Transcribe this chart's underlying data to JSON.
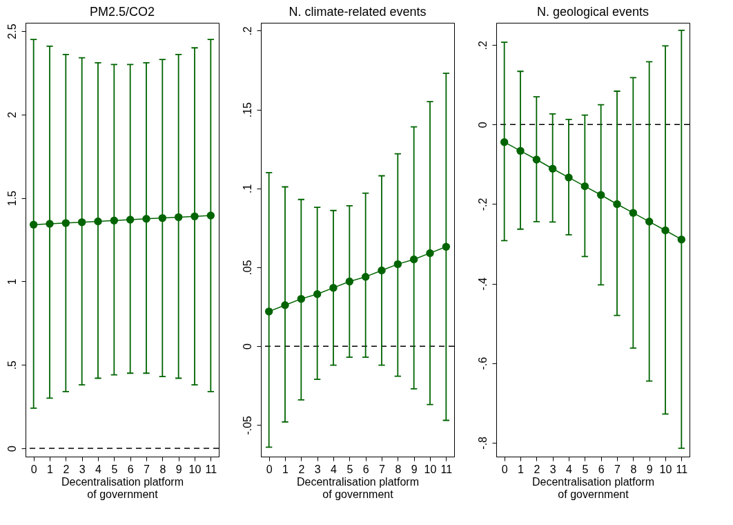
{
  "chart_data": [
    {
      "type": "line",
      "title": "PM2.5/CO2",
      "xlabel": "Decentralisation platform\nof government",
      "xlim": [
        -0.5,
        11.5
      ],
      "xticks": [
        0,
        1,
        2,
        3,
        4,
        5,
        6,
        7,
        8,
        9,
        10,
        11
      ],
      "ylim": [
        -0.05,
        2.55
      ],
      "yticks": [
        0,
        {
          "value": 0.5,
          "label": ".5"
        },
        1,
        1.5,
        2,
        2.5
      ],
      "marker": "circle",
      "line_style": "solid",
      "grid": false,
      "ref_lines": [
        {
          "axis": "y",
          "value": 0,
          "line_style": "dashed",
          "color": "#000000"
        }
      ],
      "series": [
        {
          "color": "#006400",
          "x": [
            0,
            1,
            2,
            3,
            4,
            5,
            6,
            7,
            8,
            9,
            10,
            11
          ],
          "values": [
            1.34,
            1.345,
            1.35,
            1.355,
            1.36,
            1.365,
            1.37,
            1.375,
            1.38,
            1.385,
            1.39,
            1.395
          ],
          "errors": [
            [
              0.24,
              2.45
            ],
            [
              0.3,
              2.41
            ],
            [
              0.34,
              2.36
            ],
            [
              0.38,
              2.34
            ],
            [
              0.42,
              2.31
            ],
            [
              0.44,
              2.3
            ],
            [
              0.45,
              2.3
            ],
            [
              0.45,
              2.31
            ],
            [
              0.43,
              2.33
            ],
            [
              0.42,
              2.36
            ],
            [
              0.38,
              2.4
            ],
            [
              0.34,
              2.45
            ]
          ]
        }
      ]
    },
    {
      "type": "line",
      "title": "N. climate-related events",
      "xlabel": "Decentralisation platform\nof government",
      "xlim": [
        -0.5,
        11.5
      ],
      "xticks": [
        0,
        1,
        2,
        3,
        4,
        5,
        6,
        7,
        8,
        9,
        10,
        11
      ],
      "ylim": [
        -0.07,
        0.205
      ],
      "yticks": [
        {
          "value": -0.05,
          "label": "-.05"
        },
        0,
        {
          "value": 0.05,
          "label": ".05"
        },
        {
          "value": 0.1,
          "label": ".1"
        },
        {
          "value": 0.15,
          "label": ".15"
        },
        {
          "value": 0.2,
          "label": ".2"
        }
      ],
      "marker": "circle",
      "line_style": "solid",
      "grid": false,
      "ref_lines": [
        {
          "axis": "y",
          "value": 0,
          "line_style": "dashed",
          "color": "#000000"
        }
      ],
      "series": [
        {
          "color": "#006400",
          "x": [
            0,
            1,
            2,
            3,
            4,
            5,
            6,
            7,
            8,
            9,
            10,
            11
          ],
          "values": [
            0.022,
            0.026,
            0.03,
            0.033,
            0.037,
            0.041,
            0.044,
            0.048,
            0.052,
            0.055,
            0.059,
            0.063
          ],
          "errors": [
            [
              -0.064,
              0.11
            ],
            [
              -0.048,
              0.101
            ],
            [
              -0.034,
              0.093
            ],
            [
              -0.021,
              0.088
            ],
            [
              -0.012,
              0.086
            ],
            [
              -0.007,
              0.089
            ],
            [
              -0.007,
              0.097
            ],
            [
              -0.012,
              0.108
            ],
            [
              -0.019,
              0.122
            ],
            [
              -0.027,
              0.139
            ],
            [
              -0.037,
              0.155
            ],
            [
              -0.047,
              0.173
            ]
          ]
        }
      ]
    },
    {
      "type": "line",
      "title": "N. geological events",
      "xlabel": "Decentralisation platform\nof government",
      "xlim": [
        -0.5,
        11.5
      ],
      "xticks": [
        0,
        1,
        2,
        3,
        4,
        5,
        6,
        7,
        8,
        9,
        10,
        11
      ],
      "ylim": [
        -0.835,
        0.256
      ],
      "yticks": [
        {
          "value": -0.8,
          "label": "-.8"
        },
        {
          "value": -0.6,
          "label": "-.6"
        },
        {
          "value": -0.4,
          "label": "-.4"
        },
        {
          "value": -0.2,
          "label": "-.2"
        },
        0,
        {
          "value": 0.2,
          "label": ".2"
        }
      ],
      "marker": "circle",
      "line_style": "solid",
      "grid": false,
      "ref_lines": [
        {
          "axis": "y",
          "value": 0,
          "line_style": "dashed",
          "color": "#000000"
        }
      ],
      "series": [
        {
          "color": "#006400",
          "x": [
            0,
            1,
            2,
            3,
            4,
            5,
            6,
            7,
            8,
            9,
            10,
            11
          ],
          "values": [
            -0.044,
            -0.066,
            -0.088,
            -0.111,
            -0.133,
            -0.155,
            -0.177,
            -0.2,
            -0.222,
            -0.244,
            -0.266,
            -0.289
          ],
          "errors": [
            [
              -0.292,
              0.207
            ],
            [
              -0.263,
              0.134
            ],
            [
              -0.244,
              0.07
            ],
            [
              -0.245,
              0.027
            ],
            [
              -0.277,
              0.013
            ],
            [
              -0.332,
              0.024
            ],
            [
              -0.403,
              0.05
            ],
            [
              -0.48,
              0.084
            ],
            [
              -0.562,
              0.118
            ],
            [
              -0.645,
              0.158
            ],
            [
              -0.728,
              0.198
            ],
            [
              -0.814,
              0.237
            ]
          ]
        }
      ]
    }
  ]
}
